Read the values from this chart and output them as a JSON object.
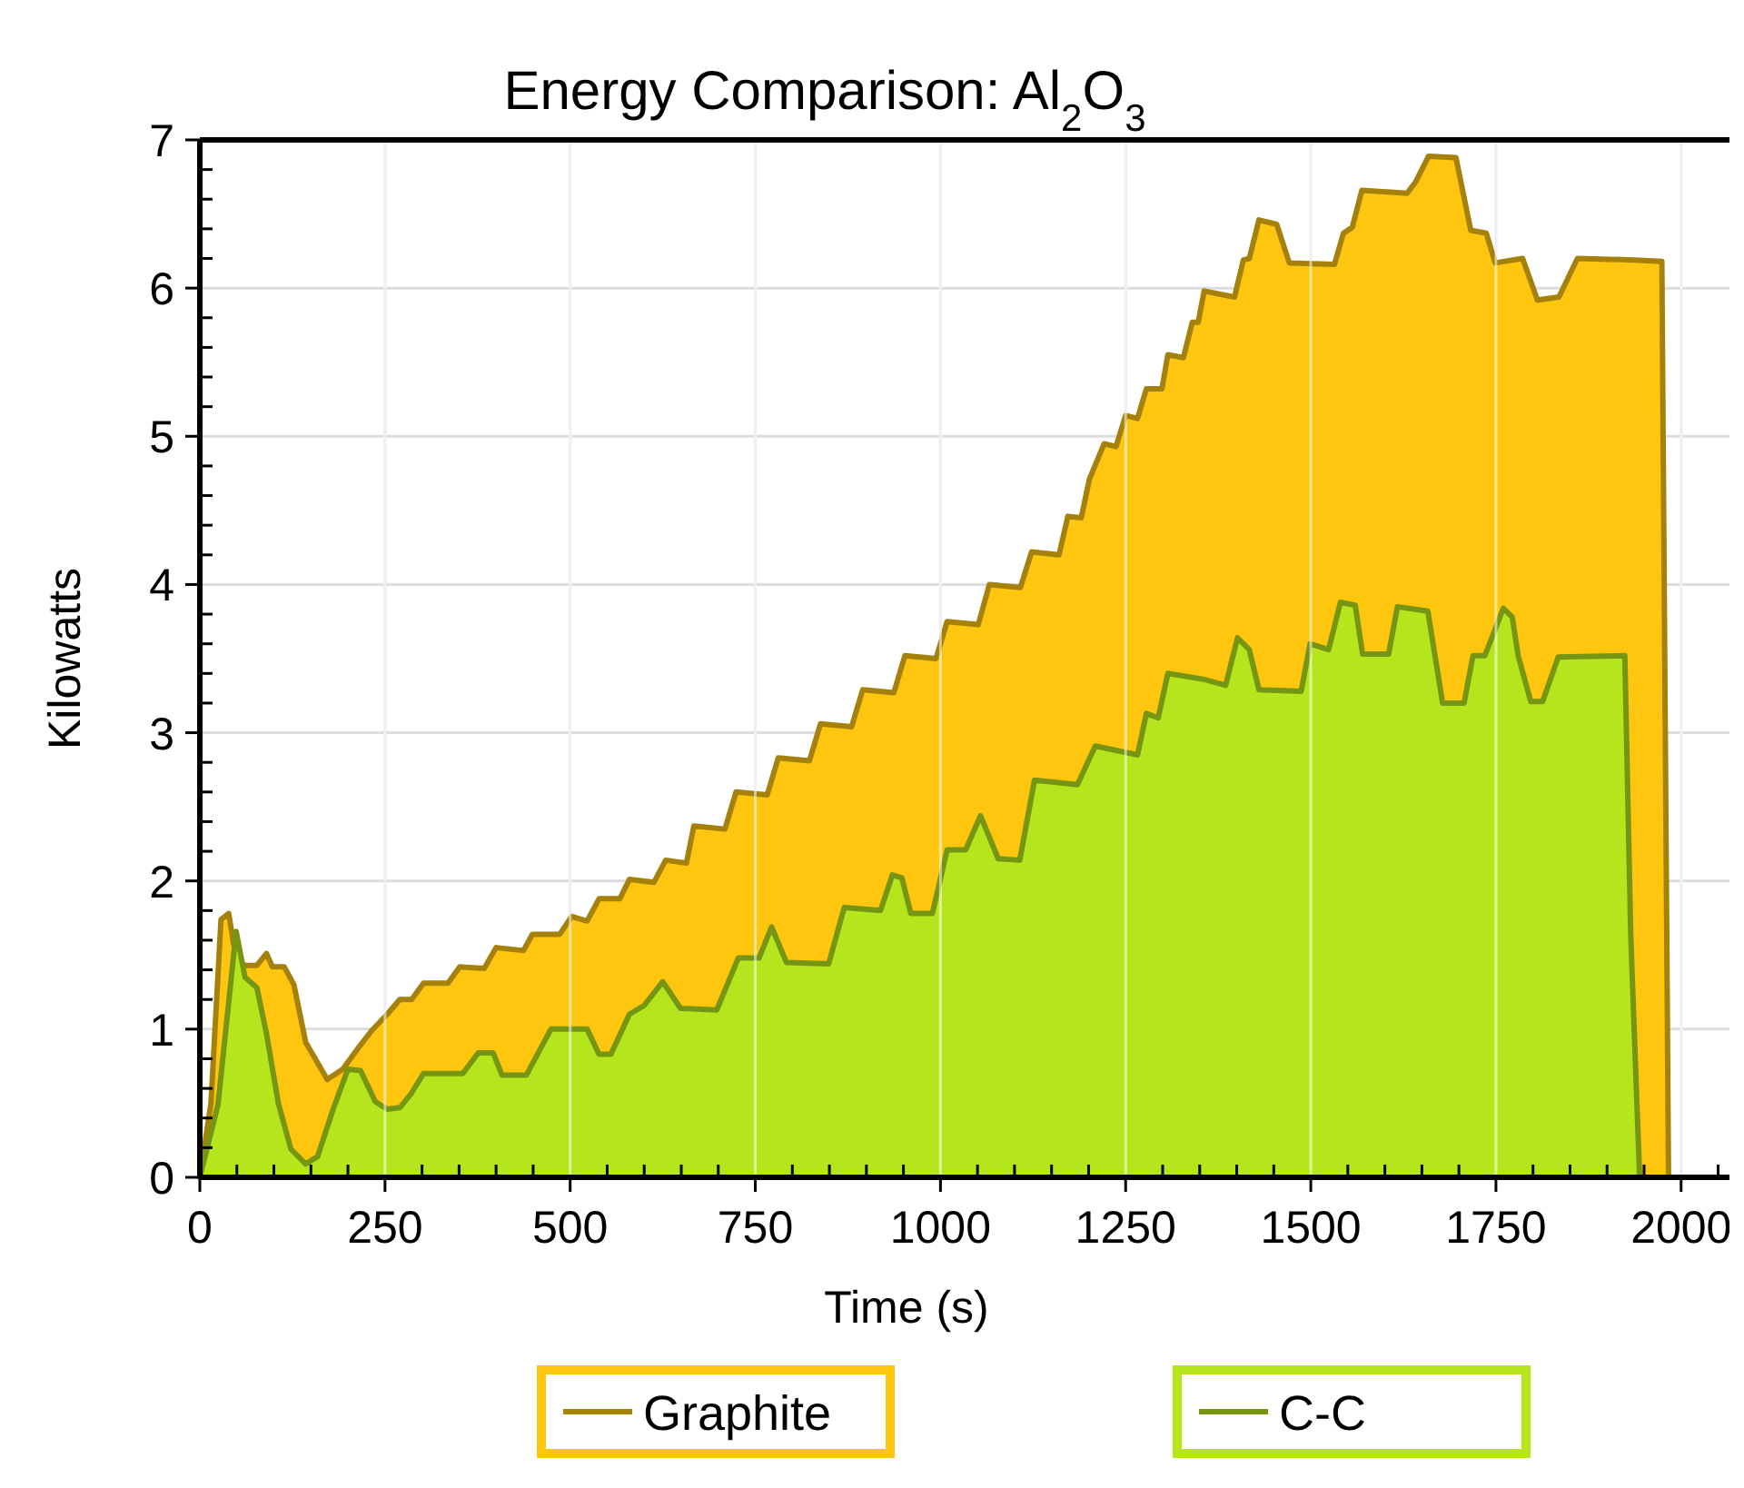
{
  "chart_data": {
    "type": "area",
    "title": "Energy Comparison: Al$_{2}$O$_{3}$",
    "xlabel": "Time (s)",
    "ylabel": "Kilowatts",
    "xlim": [
      0,
      2080
    ],
    "ylim": [
      0,
      7
    ],
    "xticks": [
      0,
      {
        "value": 50,
        "label": null
      },
      {
        "value": 100,
        "label": null
      },
      {
        "value": 150,
        "label": null
      },
      {
        "value": 200,
        "label": null
      },
      250,
      {
        "value": 300,
        "label": null
      },
      {
        "value": 350,
        "label": null
      },
      {
        "value": 400,
        "label": null
      },
      {
        "value": 450,
        "label": null
      },
      500,
      {
        "value": 550,
        "label": null
      },
      {
        "value": 600,
        "label": null
      },
      {
        "value": 650,
        "label": null
      },
      {
        "value": 700,
        "label": null
      },
      750,
      {
        "value": 800,
        "label": null
      },
      {
        "value": 850,
        "label": null
      },
      {
        "value": 900,
        "label": null
      },
      {
        "value": 950,
        "label": null
      },
      1000,
      {
        "value": 1050,
        "label": null
      },
      {
        "value": 1100,
        "label": null
      },
      {
        "value": 1150,
        "label": null
      },
      {
        "value": 1200,
        "label": null
      },
      1250,
      {
        "value": 1300,
        "label": null
      },
      {
        "value": 1350,
        "label": null
      },
      {
        "value": 1400,
        "label": null
      },
      {
        "value": 1450,
        "label": null
      },
      1500,
      {
        "value": 1550,
        "label": null
      },
      {
        "value": 1600,
        "label": null
      },
      {
        "value": 1650,
        "label": null
      },
      {
        "value": 1700,
        "label": null
      },
      1750,
      {
        "value": 1800,
        "label": null
      },
      {
        "value": 1850,
        "label": null
      },
      {
        "value": 1900,
        "label": null
      },
      {
        "value": 1950,
        "label": null
      },
      2000,
      {
        "value": 2050,
        "label": null
      }
    ],
    "yticks": [
      0,
      {
        "value": 0.2,
        "label": null
      },
      {
        "value": 0.4,
        "label": null
      },
      {
        "value": 0.6,
        "label": null
      },
      {
        "value": 0.8,
        "label": null
      },
      1,
      {
        "value": 1.2,
        "label": null
      },
      {
        "value": 1.4,
        "label": null
      },
      {
        "value": 1.6,
        "label": null
      },
      {
        "value": 1.8,
        "label": null
      },
      2,
      {
        "value": 2.2,
        "label": null
      },
      {
        "value": 2.4,
        "label": null
      },
      {
        "value": 2.6,
        "label": null
      },
      {
        "value": 2.8,
        "label": null
      },
      3,
      {
        "value": 3.2,
        "label": null
      },
      {
        "value": 3.4,
        "label": null
      },
      {
        "value": 3.6,
        "label": null
      },
      {
        "value": 3.8,
        "label": null
      },
      4,
      {
        "value": 4.2,
        "label": null
      },
      {
        "value": 4.4,
        "label": null
      },
      {
        "value": 4.6,
        "label": null
      },
      {
        "value": 4.8,
        "label": null
      },
      5,
      {
        "value": 5.2,
        "label": null
      },
      {
        "value": 5.4,
        "label": null
      },
      {
        "value": 5.6,
        "label": null
      },
      {
        "value": 5.8,
        "label": null
      },
      6,
      {
        "value": 6.2,
        "label": null
      },
      {
        "value": 6.4,
        "label": null
      },
      {
        "value": 6.6,
        "label": null
      },
      {
        "value": 6.8,
        "label": null
      },
      7
    ],
    "grid": true,
    "legend": "bottom",
    "series": [
      {
        "name": "Graphite",
        "color": "#ffc60f",
        "x": [
          0,
          15,
          28.6,
          39,
          49,
          61,
          77,
          90,
          98,
          114,
          127,
          143,
          172,
          193,
          212,
          232,
          253,
          270,
          286,
          302,
          335,
          351,
          384,
          400,
          437,
          449,
          486,
          502,
          523,
          539,
          567,
          580,
          613,
          629,
          657,
          667,
          709,
          724,
          766,
          781,
          823,
          838,
          880,
          895,
          937,
          952,
          994,
          1009,
          1051,
          1066,
          1108,
          1123,
          1160,
          1172,
          1190,
          1201,
          1221,
          1237,
          1250,
          1266,
          1278,
          1299,
          1307,
          1328,
          1340,
          1348,
          1356,
          1397,
          1409,
          1417,
          1430,
          1454,
          1471,
          1532,
          1544,
          1556,
          1569,
          1630,
          1642,
          1659,
          1696,
          1716,
          1737,
          1749,
          1786,
          1806,
          1835,
          1860,
          1937,
          1974,
          1983,
          2080
        ],
        "values": [
          0,
          0.5,
          1.74,
          1.78,
          1.47,
          1.43,
          1.43,
          1.51,
          1.42,
          1.42,
          1.3,
          0.91,
          0.66,
          0.73,
          0.86,
          0.99,
          1.1,
          1.2,
          1.2,
          1.31,
          1.31,
          1.42,
          1.41,
          1.55,
          1.53,
          1.64,
          1.64,
          1.76,
          1.73,
          1.88,
          1.88,
          2.01,
          1.99,
          2.14,
          2.12,
          2.37,
          2.35,
          2.6,
          2.58,
          2.83,
          2.81,
          3.06,
          3.04,
          3.29,
          3.27,
          3.52,
          3.5,
          3.75,
          3.73,
          4.0,
          3.98,
          4.22,
          4.2,
          4.46,
          4.45,
          4.71,
          4.95,
          4.93,
          5.14,
          5.12,
          5.32,
          5.32,
          5.55,
          5.53,
          5.77,
          5.77,
          5.98,
          5.94,
          6.19,
          6.2,
          6.46,
          6.43,
          6.17,
          6.16,
          6.37,
          6.41,
          6.66,
          6.64,
          6.72,
          6.89,
          6.88,
          6.39,
          6.37,
          6.17,
          6.2,
          5.92,
          5.94,
          6.2,
          6.19,
          6.18,
          0,
          0
        ]
      },
      {
        "name": "C-C",
        "color": "#b5e61d",
        "x": [
          0,
          24.5,
          49,
          61,
          77,
          90,
          106,
          123,
          143,
          159,
          180,
          200,
          217,
          237,
          253,
          270,
          286,
          302,
          355,
          376,
          396,
          408,
          441,
          474,
          523,
          539,
          555,
          580,
          600,
          625,
          649,
          698,
          727,
          755,
          772,
          792,
          849,
          870,
          919,
          935,
          948,
          960,
          989,
          1009,
          1034,
          1054,
          1078,
          1107,
          1127,
          1185,
          1209,
          1266,
          1278,
          1294,
          1307,
          1356,
          1385,
          1401,
          1417,
          1430,
          1487,
          1499,
          1524,
          1540,
          1560,
          1570,
          1605,
          1617,
          1658,
          1678,
          1707,
          1719,
          1735,
          1760,
          1772,
          1780,
          1797,
          1813,
          1834,
          1924,
          1932,
          1944,
          2080
        ],
        "values": [
          0,
          0.49,
          1.66,
          1.35,
          1.28,
          0.97,
          0.5,
          0.19,
          0.09,
          0.14,
          0.46,
          0.73,
          0.72,
          0.51,
          0.46,
          0.47,
          0.57,
          0.7,
          0.7,
          0.84,
          0.84,
          0.69,
          0.69,
          1.0,
          1.0,
          0.83,
          0.83,
          1.1,
          1.16,
          1.32,
          1.14,
          1.13,
          1.48,
          1.48,
          1.69,
          1.45,
          1.44,
          1.82,
          1.8,
          2.04,
          2.02,
          1.78,
          1.78,
          2.21,
          2.21,
          2.44,
          2.15,
          2.14,
          2.68,
          2.65,
          2.91,
          2.85,
          3.13,
          3.1,
          3.4,
          3.36,
          3.32,
          3.64,
          3.56,
          3.29,
          3.28,
          3.6,
          3.56,
          3.88,
          3.86,
          3.53,
          3.53,
          3.85,
          3.82,
          3.2,
          3.2,
          3.52,
          3.52,
          3.84,
          3.78,
          3.52,
          3.21,
          3.21,
          3.51,
          3.52,
          1.63,
          0,
          0
        ]
      }
    ]
  }
}
